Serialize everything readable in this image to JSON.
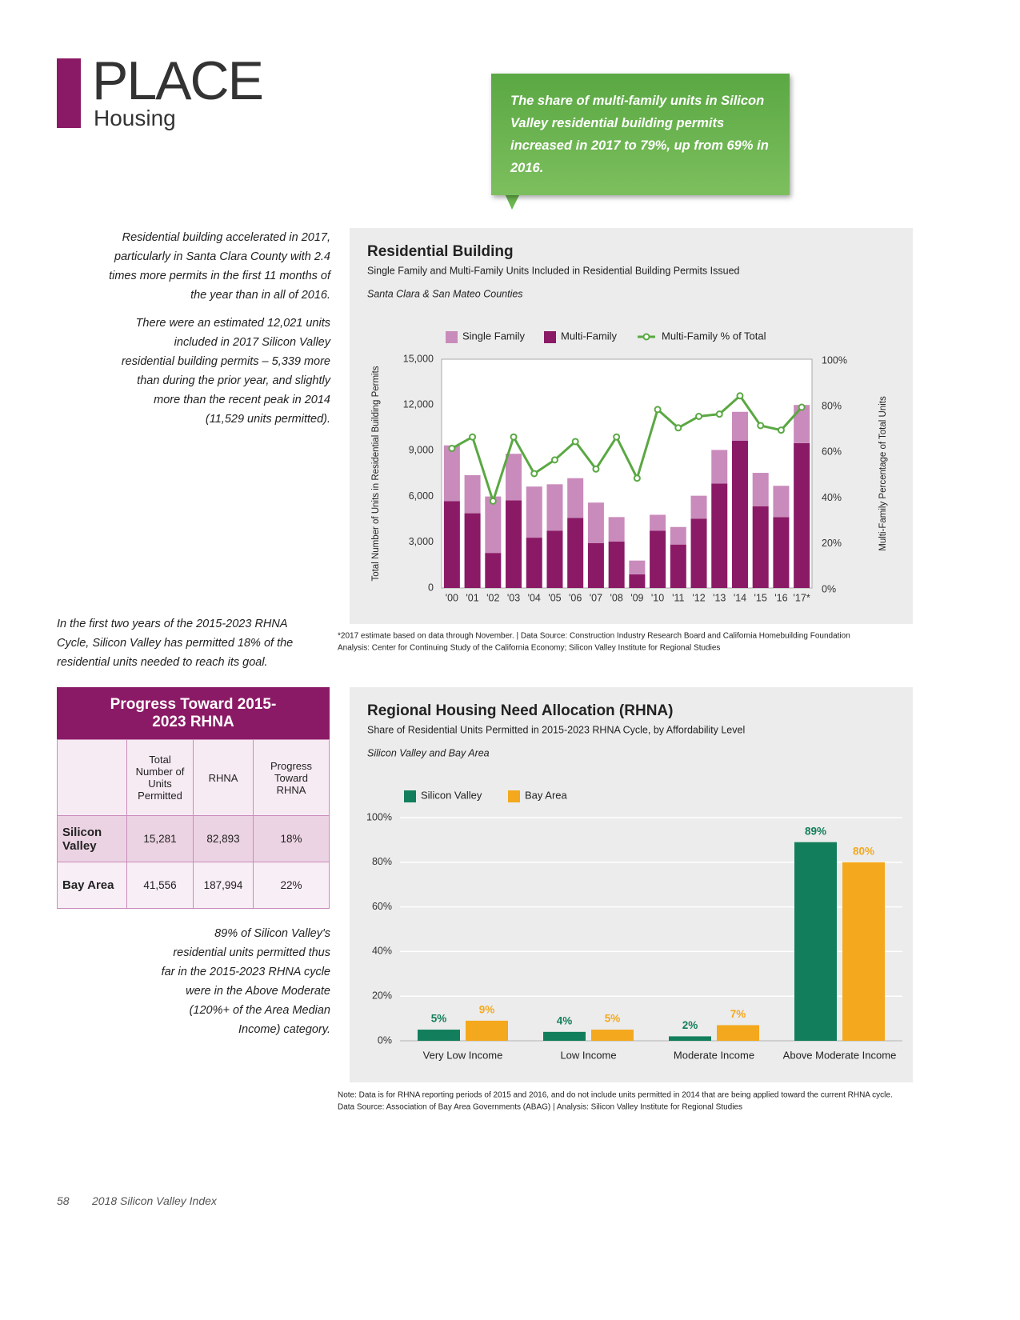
{
  "header": {
    "section": "PLACE",
    "subsection": "Housing"
  },
  "callout": "The share of multi-family units in Silicon Valley residential building permits increased in 2017 to 79%, up from 69% in 2016.",
  "sidebar": [
    "Residential building accelerated in 2017, particularly in Santa Clara County with 2.4 times more permits in the first 11 months of the year than in all of 2016.",
    "There were an estimated 12,021 units included in 2017 Silicon Valley residential building permits – 5,339 more than during the prior year, and slightly more than the recent peak in 2014 (11,529 units permitted).",
    "In the first two years of the 2015-2023 RHNA Cycle, Silicon Valley has permitted 18% of the residential units needed to reach its goal.",
    "89% of Silicon Valley's residential units permitted thus far in the 2015-2023 RHNA cycle were in the Above Moderate (120%+ of the Area Median Income) category."
  ],
  "table": {
    "title": "Progress Toward 2015-2023 RHNA",
    "columns": [
      "Total Number of Units Permitted",
      "RHNA",
      "Progress Toward RHNA"
    ],
    "rows": [
      [
        "Silicon Valley",
        "15,281",
        "82,893",
        "18%"
      ],
      [
        "Bay Area",
        "41,556",
        "187,994",
        "22%"
      ]
    ]
  },
  "footer": {
    "page": "58",
    "publication": "2018 Silicon Valley Index"
  },
  "chart_data": [
    {
      "type": "bar",
      "stacked": true,
      "title": "Residential Building",
      "subtitle": "Single Family and Multi-Family Units Included in Residential Building Permits Issued",
      "annotation": "Santa Clara & San Mateo Counties",
      "categories": [
        "'00",
        "'01",
        "'02",
        "'03",
        "'04",
        "'05",
        "'06",
        "'07",
        "'08",
        "'09",
        "'10",
        "'11",
        "'12",
        "'13",
        "'14",
        "'15",
        "'16",
        "'17*"
      ],
      "series": [
        {
          "name": "Single Family",
          "color": "#c98bbb",
          "values": [
            3650,
            2500,
            3700,
            3050,
            3350,
            3050,
            2600,
            2650,
            1600,
            900,
            1050,
            1150,
            1500,
            2200,
            1900,
            2200,
            2050,
            2500
          ]
        },
        {
          "name": "Multi-Family",
          "color": "#8b1a66",
          "values": [
            5700,
            4900,
            2300,
            5750,
            3300,
            3750,
            4600,
            2950,
            3050,
            900,
            3750,
            2850,
            4550,
            6850,
            9650,
            5350,
            4650,
            9500
          ]
        },
        {
          "name": "Multi-Family % of Total",
          "color": "#5aa843",
          "type": "line",
          "axis": "y2",
          "values": [
            61,
            66,
            38,
            66,
            50,
            56,
            64,
            52,
            66,
            48,
            78,
            70,
            75,
            76,
            84,
            71,
            69,
            79
          ]
        }
      ],
      "ylabel": "Total Number of Units in Residential Building Permits",
      "y2label": "Multi-Family Percentage of Total Units",
      "ylim": [
        0,
        15000
      ],
      "yticks": [
        0,
        {
          "value": 3000,
          "label": "3,000"
        },
        {
          "value": 6000,
          "label": "6,000"
        },
        {
          "value": 9000,
          "label": "9,000"
        },
        {
          "value": 12000,
          "label": "12,000"
        },
        {
          "value": 15000,
          "label": "15,000"
        }
      ],
      "y2lim": [
        0,
        100
      ],
      "y2ticks": [
        {
          "value": 0,
          "label": "0%"
        },
        {
          "value": 20,
          "label": "20%"
        },
        {
          "value": 40,
          "label": "40%"
        },
        {
          "value": 60,
          "label": "60%"
        },
        {
          "value": 80,
          "label": "80%"
        },
        {
          "value": 100,
          "label": "100%"
        }
      ],
      "grid": false,
      "legend": "top",
      "notes": [
        "*2017 estimate based on data through November. | Data Source: Construction Industry Research Board and California Homebuilding Foundation",
        "Analysis: Center for Continuing Study of the California Economy; Silicon Valley Institute for Regional Studies"
      ]
    },
    {
      "type": "bar",
      "stacked": false,
      "title": "Regional Housing Need Allocation (RHNA)",
      "subtitle": "Share of Residential Units Permitted in 2015-2023 RHNA Cycle, by Affordability Level",
      "annotation": "Silicon Valley and Bay Area",
      "categories": [
        "Very Low Income",
        "Low Income",
        "Moderate Income",
        "Above Moderate Income"
      ],
      "series": [
        {
          "name": "Silicon Valley",
          "color": "#127e5b",
          "values": [
            5,
            4,
            2,
            89
          ],
          "value_labels": [
            "5%",
            "4%",
            "2%",
            "89%"
          ]
        },
        {
          "name": "Bay Area",
          "color": "#f4a81d",
          "values": [
            9,
            5,
            7,
            80
          ],
          "value_labels": [
            "9%",
            "5%",
            "7%",
            "80%"
          ]
        }
      ],
      "ylim": [
        0,
        100
      ],
      "yticks": [
        {
          "value": 0,
          "label": "0%"
        },
        {
          "value": 20,
          "label": "20%"
        },
        {
          "value": 40,
          "label": "40%"
        },
        {
          "value": 60,
          "label": "60%"
        },
        {
          "value": 80,
          "label": "80%"
        },
        {
          "value": 100,
          "label": "100%"
        }
      ],
      "grid": true,
      "legend": "top",
      "notes": [
        "Note: Data is for RHNA reporting periods of 2015 and 2016, and do not include units permitted in 2014 that are being applied toward the current RHNA cycle.",
        "Data Source: Association of Bay Area Governments (ABAG) | Analysis: Silicon Valley Institute for Regional Studies"
      ]
    }
  ]
}
